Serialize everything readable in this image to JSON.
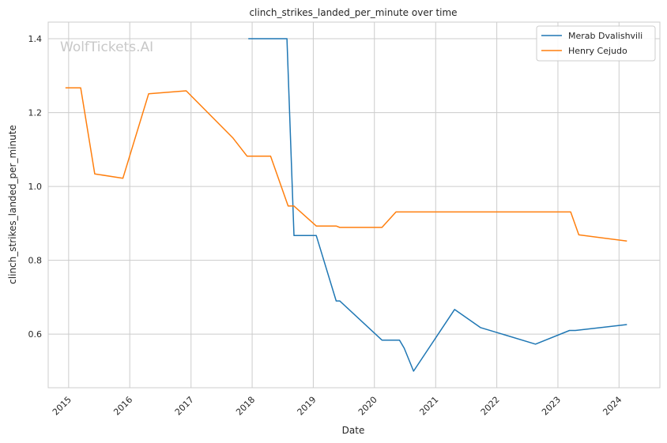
{
  "chart_data": {
    "type": "line",
    "title": "clinch_strikes_landed_per_minute over time",
    "xlabel": "Date",
    "ylabel": "clinch_strikes_landed_per_minute",
    "watermark": "WolfTickets.AI",
    "xlim": [
      "2014-09-01",
      "2024-09-01"
    ],
    "ylim": [
      0.455,
      1.445
    ],
    "x_ticks": [
      "2015",
      "2016",
      "2017",
      "2018",
      "2019",
      "2020",
      "2021",
      "2022",
      "2023",
      "2024"
    ],
    "y_ticks": [
      "0.6",
      "0.8",
      "1.0",
      "1.2",
      "1.4"
    ],
    "grid": true,
    "legend_position": "top-right",
    "series": [
      {
        "name": "Merab Dvalishvili",
        "color": "#1f77b4",
        "points": [
          [
            "2017-12-09",
            1.4
          ],
          [
            "2018-07-28",
            1.4
          ],
          [
            "2018-09-08",
            0.867
          ],
          [
            "2019-01-19",
            0.867
          ],
          [
            "2019-05-18",
            0.69
          ],
          [
            "2019-06-08",
            0.69
          ],
          [
            "2020-02-15",
            0.584
          ],
          [
            "2020-05-30",
            0.584
          ],
          [
            "2020-06-27",
            0.562
          ],
          [
            "2020-08-22",
            0.5
          ],
          [
            "2021-04-24",
            0.667
          ],
          [
            "2021-09-25",
            0.618
          ],
          [
            "2022-08-20",
            0.573
          ],
          [
            "2023-03-11",
            0.61
          ],
          [
            "2023-04-15",
            0.61
          ],
          [
            "2024-02-17",
            0.626
          ]
        ]
      },
      {
        "name": "Henry Cejudo",
        "color": "#ff7f0e",
        "points": [
          [
            "2014-12-13",
            1.267
          ],
          [
            "2015-03-14",
            1.267
          ],
          [
            "2015-06-06",
            1.034
          ],
          [
            "2015-11-21",
            1.022
          ],
          [
            "2016-04-23",
            1.251
          ],
          [
            "2016-12-03",
            1.259
          ],
          [
            "2017-09-09",
            1.131
          ],
          [
            "2017-12-02",
            1.082
          ],
          [
            "2018-04-21",
            1.082
          ],
          [
            "2018-08-04",
            0.947
          ],
          [
            "2018-09-08",
            0.947
          ],
          [
            "2019-01-19",
            0.893
          ],
          [
            "2019-05-18",
            0.893
          ],
          [
            "2019-06-08",
            0.889
          ],
          [
            "2020-02-15",
            0.889
          ],
          [
            "2020-05-09",
            0.931
          ],
          [
            "2023-03-18",
            0.931
          ],
          [
            "2023-05-06",
            0.869
          ],
          [
            "2024-02-17",
            0.852
          ]
        ]
      }
    ]
  }
}
